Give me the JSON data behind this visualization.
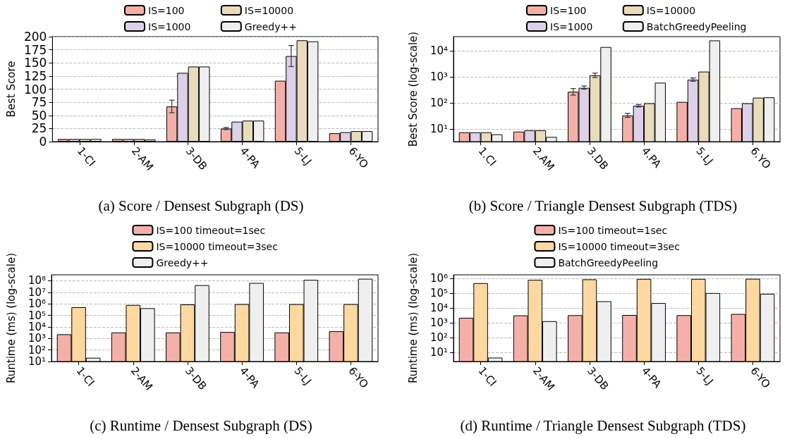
{
  "chart_data": [
    {
      "type": "bar",
      "title": "(a) Score / Densest Subgraph (DS)",
      "ylabel": "Best Score",
      "categories": [
        "1-CI",
        "2-AM",
        "3-DB",
        "4-PA",
        "5-LJ",
        "6-YO"
      ],
      "series": [
        {
          "name": "IS=100",
          "color": "#f4b0a8",
          "values": [
            5,
            5,
            67,
            25,
            116,
            16
          ],
          "errors": [
            null,
            null,
            12,
            2,
            null,
            null
          ]
        },
        {
          "name": "IS=1000",
          "color": "#ddd0e8",
          "values": [
            5,
            5,
            131,
            38,
            163,
            18
          ],
          "errors": [
            null,
            null,
            null,
            null,
            20,
            null
          ]
        },
        {
          "name": "IS=10000",
          "color": "#e9dcbc",
          "values": [
            5,
            5,
            143,
            40,
            193,
            20
          ]
        },
        {
          "name": "Greedy++",
          "color": "#efefef",
          "values": [
            5,
            4,
            143,
            40,
            191,
            20
          ]
        }
      ],
      "ylim": [
        0,
        200
      ],
      "yticks": [
        0,
        25,
        50,
        75,
        100,
        125,
        150,
        175,
        200
      ],
      "grid": "y",
      "legend": "top"
    },
    {
      "type": "bar",
      "title": "(b) Score / Triangle Densest Subgraph (TDS)",
      "ylabel": "Best Score (log-scale)",
      "categories": [
        "1.CI",
        "2.AM",
        "3.DB",
        "4.PA",
        "5.LJ",
        "6.YO"
      ],
      "series": [
        {
          "name": "IS=100",
          "color": "#f4b0a8",
          "values": [
            7.5,
            8,
            270,
            33,
            110,
            63
          ],
          "errors": [
            null,
            null,
            [
              200,
              360
            ],
            [
              28,
              40
            ],
            null,
            null
          ]
        },
        {
          "name": "IS=1000",
          "color": "#ddd0e8",
          "values": [
            7.5,
            9,
            380,
            78,
            780,
            98
          ],
          "errors": [
            null,
            null,
            [
              340,
              450
            ],
            [
              70,
              87
            ],
            [
              680,
              900
            ],
            null
          ]
        },
        {
          "name": "IS=10000",
          "color": "#e9dcbc",
          "values": [
            7.5,
            9,
            1150,
            98,
            1600,
            160
          ],
          "errors": [
            null,
            null,
            [
              950,
              1400
            ],
            null,
            null,
            null
          ]
        },
        {
          "name": "BatchGreedyPeeling",
          "color": "#efefef",
          "values": [
            6.3,
            5,
            14000,
            600,
            25000,
            165
          ]
        }
      ],
      "ylim": [
        3.3,
        35000
      ],
      "yticks": [
        {
          "value": 10,
          "label": "10¹"
        },
        {
          "value": 100,
          "label": "10²"
        },
        {
          "value": 1000,
          "label": "10³"
        },
        {
          "value": 10000,
          "label": "10⁴"
        }
      ],
      "log": true,
      "grid": "y",
      "legend": "top"
    },
    {
      "type": "bar",
      "title": "(c) Runtime / Densest Subgraph (DS)",
      "ylabel": "Runtime (ms) (log-scale)",
      "categories": [
        "1-CI",
        "2-AM",
        "3-DB",
        "4-PA",
        "5-LJ",
        "6-YO"
      ],
      "series": [
        {
          "name": "IS=100 timeout=1sec",
          "color": "#f4b0a8",
          "values": [
            2300,
            3300,
            3300,
            3600,
            3300,
            4200
          ]
        },
        {
          "name": "IS=10000 timeout=3sec",
          "color": "#fdd8a0",
          "values": [
            510000,
            800000,
            890000,
            950000,
            950000,
            950000
          ]
        },
        {
          "name": "Greedy++",
          "color": "#efefef",
          "values": [
            21,
            420000,
            42000000,
            65000000,
            120000000,
            150000000
          ]
        }
      ],
      "ylim": [
        10,
        330000000
      ],
      "yticks": [
        {
          "value": 10,
          "label": "10¹"
        },
        {
          "value": 100,
          "label": "10²"
        },
        {
          "value": 1000,
          "label": "10³"
        },
        {
          "value": 10000,
          "label": "10⁴"
        },
        {
          "value": 100000,
          "label": "10⁵"
        },
        {
          "value": 1000000,
          "label": "10⁶"
        },
        {
          "value": 10000000,
          "label": "10⁷"
        },
        {
          "value": 100000000,
          "label": "10⁸"
        }
      ],
      "log": true,
      "grid": "y",
      "legend": "top"
    },
    {
      "type": "bar",
      "title": "(d) Runtime / Triangle Densest Subgraph (TDS)",
      "ylabel": "Runtime (ms) (log-scale)",
      "categories": [
        "1-CI",
        "2-AM",
        "3-DB",
        "4-PA",
        "5-LJ",
        "6-YO"
      ],
      "series": [
        {
          "name": "IS=100 timeout=1sec",
          "color": "#f4b0a8",
          "values": [
            2200,
            3200,
            3300,
            3400,
            3300,
            4000
          ]
        },
        {
          "name": "IS=10000 timeout=3sec",
          "color": "#fdd8a0",
          "values": [
            490000,
            820000,
            890000,
            950000,
            950000,
            970000
          ]
        },
        {
          "name": "BatchGreedyPeeling",
          "color": "#efefef",
          "values": [
            4.4,
            1300,
            29000,
            22000,
            105000,
            93000
          ]
        }
      ],
      "ylim": [
        2.4,
        1800000
      ],
      "yticks": [
        {
          "value": 10,
          "label": "10¹"
        },
        {
          "value": 100,
          "label": "10²"
        },
        {
          "value": 1000,
          "label": "10³"
        },
        {
          "value": 10000,
          "label": "10⁴"
        },
        {
          "value": 100000,
          "label": "10⁵"
        },
        {
          "value": 1000000,
          "label": "10⁶"
        }
      ],
      "log": true,
      "grid": "y",
      "legend": "top"
    }
  ]
}
